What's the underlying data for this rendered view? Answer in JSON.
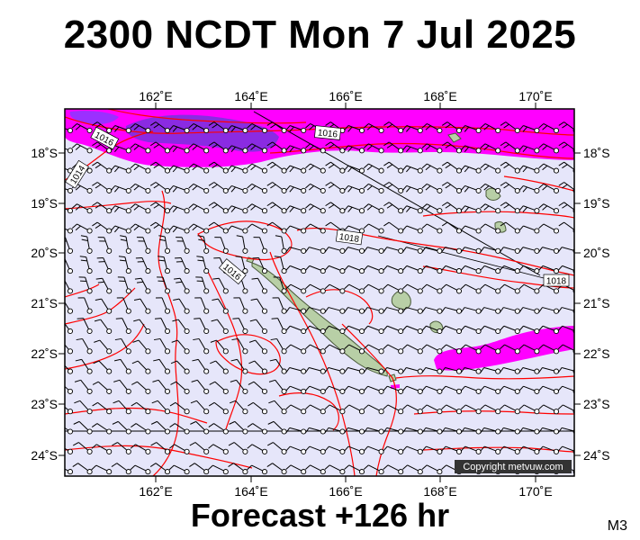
{
  "title": "2300 NCDT Mon 7 Jul 2025",
  "footer": "Forecast +126 hr",
  "model_code": "M3",
  "copyright": "Copyright metvuw.com",
  "colors": {
    "sea": "#e6e6fa",
    "isobar": "#ff0000",
    "rain_light": "#ff00ff",
    "rain_heavy": "#8a2be2",
    "land": "#b8cfa6",
    "barb": "#000000"
  },
  "axes": {
    "lon_ticks": [
      "162˚E",
      "164˚E",
      "166˚E",
      "168˚E",
      "170˚E"
    ],
    "lat_ticks": [
      "18˚S",
      "19˚S",
      "20˚S",
      "21˚S",
      "22˚S",
      "23˚S",
      "24˚S"
    ]
  },
  "isobar_labels": [
    "1016",
    "1016",
    "1014",
    "1018",
    "1016",
    "1018"
  ]
}
